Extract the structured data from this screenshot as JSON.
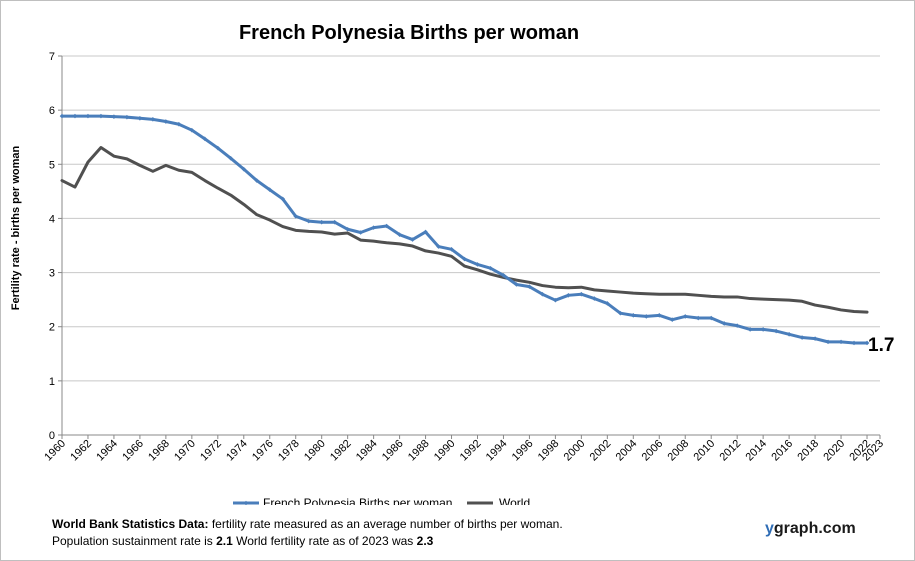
{
  "chart_data": {
    "type": "line",
    "title": "French Polynesia Births per woman",
    "ylabel": "Fertility rate  - births per woman",
    "xlabel": "",
    "ylim": [
      0,
      7
    ],
    "yticks": [
      0,
      1,
      2,
      3,
      4,
      5,
      6,
      7
    ],
    "xlim": [
      1960,
      2023
    ],
    "xticks": [
      1960,
      1962,
      1964,
      1966,
      1968,
      1970,
      1972,
      1974,
      1976,
      1978,
      1980,
      1982,
      1984,
      1986,
      1988,
      1990,
      1992,
      1994,
      1996,
      1998,
      2000,
      2002,
      2004,
      2006,
      2008,
      2010,
      2012,
      2014,
      2016,
      2018,
      2020,
      2022,
      2023
    ],
    "grid": true,
    "legend_position": "bottom",
    "end_label": "1.7",
    "x": [
      1960,
      1961,
      1962,
      1963,
      1964,
      1965,
      1966,
      1967,
      1968,
      1969,
      1970,
      1971,
      1972,
      1973,
      1974,
      1975,
      1976,
      1977,
      1978,
      1979,
      1980,
      1981,
      1982,
      1983,
      1984,
      1985,
      1986,
      1987,
      1988,
      1989,
      1990,
      1991,
      1992,
      1993,
      1994,
      1995,
      1996,
      1997,
      1998,
      1999,
      2000,
      2001,
      2002,
      2003,
      2004,
      2005,
      2006,
      2007,
      2008,
      2009,
      2010,
      2011,
      2012,
      2013,
      2014,
      2015,
      2016,
      2017,
      2018,
      2019,
      2020,
      2021,
      2022
    ],
    "series": [
      {
        "name": "French Polynesia Births per woman",
        "color": "#4a7ebb",
        "markers": true,
        "values": [
          5.89,
          5.89,
          5.89,
          5.89,
          5.88,
          5.87,
          5.85,
          5.83,
          5.79,
          5.74,
          5.63,
          5.47,
          5.3,
          5.11,
          4.91,
          4.7,
          4.53,
          4.36,
          4.04,
          3.95,
          3.93,
          3.93,
          3.8,
          3.74,
          3.83,
          3.86,
          3.7,
          3.61,
          3.75,
          3.48,
          3.43,
          3.25,
          3.15,
          3.08,
          2.95,
          2.78,
          2.74,
          2.6,
          2.49,
          2.58,
          2.6,
          2.52,
          2.43,
          2.25,
          2.21,
          2.19,
          2.21,
          2.13,
          2.19,
          2.16,
          2.16,
          2.06,
          2.02,
          1.95,
          1.95,
          1.92,
          1.86,
          1.8,
          1.78,
          1.72,
          1.72,
          1.7,
          1.7
        ]
      },
      {
        "name": "World",
        "color": "#505050",
        "markers": false,
        "values": [
          4.7,
          4.58,
          5.04,
          5.31,
          5.15,
          5.1,
          4.98,
          4.87,
          4.98,
          4.89,
          4.85,
          4.7,
          4.56,
          4.43,
          4.26,
          4.07,
          3.97,
          3.85,
          3.78,
          3.76,
          3.75,
          3.71,
          3.73,
          3.6,
          3.58,
          3.55,
          3.53,
          3.49,
          3.4,
          3.36,
          3.3,
          3.12,
          3.05,
          2.97,
          2.91,
          2.86,
          2.82,
          2.76,
          2.73,
          2.72,
          2.73,
          2.68,
          2.66,
          2.64,
          2.62,
          2.61,
          2.6,
          2.6,
          2.6,
          2.58,
          2.56,
          2.55,
          2.55,
          2.52,
          2.51,
          2.5,
          2.49,
          2.47,
          2.4,
          2.36,
          2.31,
          2.28,
          2.27
        ]
      }
    ]
  },
  "footer": {
    "line1_bold": "World Bank Statistics Data:",
    "line1_rest": " fertility rate measured as an average number of births per woman.",
    "line2_a": "Population sustainment rate is ",
    "line2_b": "2.1",
    "line2_c": "   World fertility rate as of 2023 was ",
    "line2_d": "2.3"
  },
  "brand": {
    "y": "y",
    "rest": "graph.com"
  }
}
